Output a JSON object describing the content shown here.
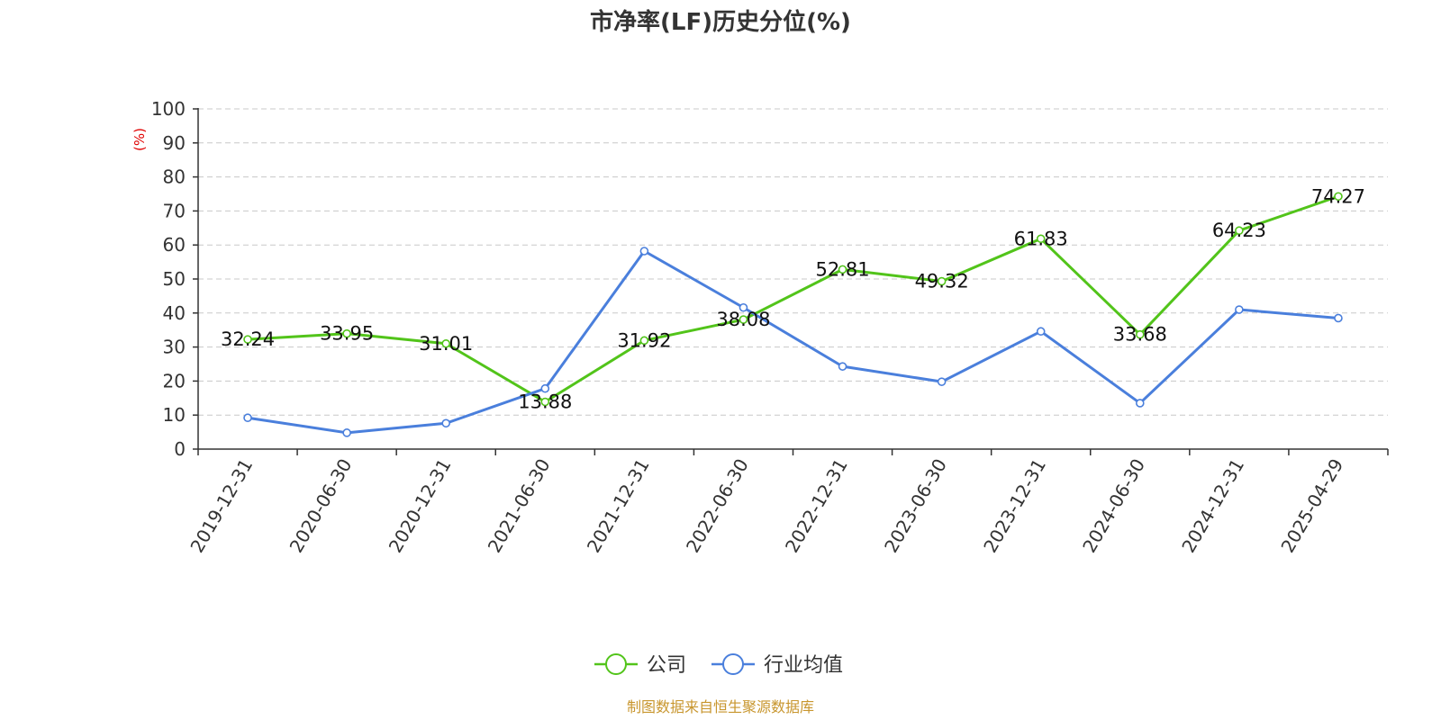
{
  "chart_data": {
    "type": "line",
    "title": "市净率(LF)历史分位(%)",
    "ylabel": "(%)",
    "xlabel": "",
    "categories": [
      "2019-12-31",
      "2020-06-30",
      "2020-12-31",
      "2021-06-30",
      "2021-12-31",
      "2022-06-30",
      "2022-12-31",
      "2023-06-30",
      "2023-12-31",
      "2024-06-30",
      "2024-12-31",
      "2025-04-29"
    ],
    "ylim": [
      0,
      100
    ],
    "yticks": [
      "0",
      "10",
      "20",
      "30",
      "40",
      "50",
      "60",
      "70",
      "80",
      "90",
      "100"
    ],
    "grid": true,
    "legend_position": "bottom",
    "series": [
      {
        "name": "公司",
        "color": "#52c41a",
        "values": [
          32.24,
          33.95,
          31.01,
          13.88,
          31.92,
          38.08,
          52.81,
          49.32,
          61.83,
          33.68,
          64.23,
          74.27
        ],
        "labels": [
          "32.24",
          "33.95",
          "31.01",
          "13.88",
          "31.92",
          "38.08",
          "52.81",
          "49.32",
          "61.83",
          "33.68",
          "64.23",
          "74.27"
        ]
      },
      {
        "name": "行业均值",
        "color": "#4a7fdc",
        "values": [
          9.2,
          4.8,
          7.6,
          17.8,
          58.2,
          41.6,
          24.3,
          19.8,
          34.6,
          13.5,
          41.0,
          38.5
        ]
      }
    ],
    "source": "制图数据来自恒生聚源数据库"
  }
}
